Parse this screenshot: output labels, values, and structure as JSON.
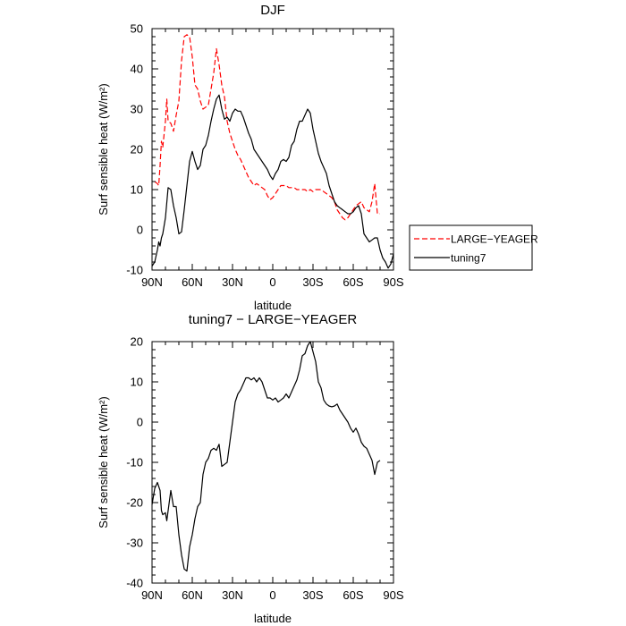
{
  "chart_data": [
    {
      "type": "line",
      "title": "DJF",
      "xlabel": "latitude",
      "ylabel": "Surf sensible heat (W/m²)",
      "xlim": [
        90,
        -90
      ],
      "ylim": [
        -10,
        50
      ],
      "xticks": [
        90,
        60,
        30,
        0,
        -30,
        -60,
        -90
      ],
      "xtick_labels": [
        "90N",
        "60N",
        "30N",
        "0",
        "30S",
        "60S",
        "90S"
      ],
      "yticks": [
        -10,
        0,
        10,
        20,
        30,
        40,
        50
      ],
      "ytick_labels": [
        "-10",
        "0",
        "10",
        "20",
        "30",
        "40",
        "50"
      ],
      "legend_placement": "right",
      "series": [
        {
          "name": "LARGE−YEAGER",
          "color": "#ff0000",
          "dash": "dashed",
          "x": [
            88,
            86,
            85,
            84,
            83,
            82,
            80,
            79,
            78,
            76,
            74,
            72,
            70,
            68,
            66,
            64,
            62,
            60,
            58,
            56,
            54,
            52,
            50,
            48,
            46,
            44,
            42,
            40,
            38,
            36,
            34,
            32,
            30,
            28,
            26,
            24,
            22,
            20,
            18,
            16,
            14,
            12,
            10,
            8,
            6,
            4,
            2,
            0,
            -2,
            -4,
            -6,
            -8,
            -10,
            -12,
            -14,
            -16,
            -18,
            -20,
            -22,
            -24,
            -26,
            -28,
            -30,
            -32,
            -34,
            -36,
            -38,
            -40,
            -42,
            -44,
            -46,
            -48,
            -50,
            -52,
            -54,
            -56,
            -58,
            -60,
            -62,
            -64,
            -66,
            -68,
            -70,
            -72,
            -74,
            -76,
            -78,
            -80
          ],
          "y": [
            12,
            11.5,
            11,
            16,
            22,
            20.5,
            27,
            32.5,
            27,
            26.5,
            24.5,
            28.5,
            32,
            42,
            48,
            48.5,
            48,
            43,
            36,
            35,
            32,
            30,
            30.5,
            31,
            35,
            39,
            45,
            41,
            36,
            33,
            27,
            24,
            22,
            20,
            18.5,
            17.5,
            16,
            14.5,
            13,
            12,
            11,
            11.5,
            11,
            10.5,
            10,
            8.5,
            7.5,
            8,
            9,
            10,
            11,
            11,
            11,
            10.5,
            10.5,
            10.5,
            10,
            10,
            10,
            10,
            9.5,
            10,
            9.5,
            10,
            10,
            10,
            9.5,
            9,
            8.5,
            8,
            7,
            5,
            4,
            3,
            2.5,
            3,
            4,
            5,
            6,
            6.5,
            7,
            5.5,
            5,
            4.5,
            7,
            11.5,
            4,
            4
          ]
        },
        {
          "name": "tuning7",
          "color": "#000000",
          "dash": "solid",
          "x": [
            90,
            88,
            86,
            85,
            84,
            83,
            82,
            80,
            78,
            76,
            74,
            72,
            70,
            68,
            66,
            64,
            62,
            60,
            58,
            56,
            54,
            52,
            50,
            48,
            46,
            44,
            42,
            40,
            38,
            36,
            34,
            32,
            30,
            28,
            26,
            24,
            22,
            20,
            18,
            16,
            14,
            12,
            10,
            8,
            6,
            4,
            2,
            0,
            -2,
            -4,
            -6,
            -8,
            -10,
            -12,
            -14,
            -16,
            -18,
            -20,
            -22,
            -24,
            -26,
            -28,
            -30,
            -32,
            -34,
            -36,
            -38,
            -40,
            -42,
            -44,
            -46,
            -48,
            -50,
            -52,
            -54,
            -56,
            -58,
            -60,
            -62,
            -64,
            -66,
            -68,
            -70,
            -72,
            -74,
            -76,
            -78,
            -80,
            -82,
            -84,
            -86,
            -88,
            -90
          ],
          "y": [
            -9,
            -8,
            -5,
            -3,
            -4,
            -2,
            -1,
            3,
            10.5,
            10,
            6,
            3,
            -1,
            -0.5,
            5,
            11,
            17,
            19.5,
            17,
            15,
            16,
            20,
            21,
            23.5,
            27,
            30,
            32.5,
            33.5,
            30,
            27.5,
            28,
            27,
            29,
            30,
            29.5,
            29.5,
            28,
            26,
            24,
            22.5,
            20,
            19,
            18,
            17,
            16,
            15,
            13.5,
            12.5,
            14,
            15,
            17,
            17.5,
            17,
            18,
            21,
            22,
            25,
            27,
            27,
            28.5,
            30,
            29,
            25,
            22,
            19,
            17,
            15.5,
            14,
            11,
            9,
            7,
            6,
            5.5,
            5,
            4.5,
            4,
            4,
            4.5,
            5.5,
            6,
            4,
            -1,
            -2,
            -3,
            -2.5,
            -2,
            -2,
            -5,
            -7,
            -8,
            -9.5,
            -8.5,
            -6
          ]
        }
      ]
    },
    {
      "type": "line",
      "title": "tuning7 − LARGE−YEAGER",
      "xlabel": "latitude",
      "ylabel": "Surf sensible heat (W/m²)",
      "xlim": [
        90,
        -90
      ],
      "ylim": [
        -40,
        20
      ],
      "xticks": [
        90,
        60,
        30,
        0,
        -30,
        -60,
        -90
      ],
      "xtick_labels": [
        "90N",
        "60N",
        "30N",
        "0",
        "30S",
        "60S",
        "90S"
      ],
      "yticks": [
        -40,
        -30,
        -20,
        -10,
        0,
        10,
        20
      ],
      "ytick_labels": [
        "-40",
        "-30",
        "-20",
        "-10",
        "0",
        "10",
        "20"
      ],
      "series": [
        {
          "color": "#000000",
          "dash": "solid",
          "x": [
            90,
            88,
            86,
            84,
            83,
            82,
            80,
            79,
            78,
            76,
            74,
            72,
            70,
            68,
            66,
            64,
            62,
            60,
            58,
            56,
            54,
            52,
            50,
            48,
            46,
            44,
            42,
            40,
            38,
            36,
            34,
            32,
            30,
            28,
            26,
            24,
            22,
            20,
            18,
            16,
            14,
            12,
            10,
            8,
            6,
            4,
            2,
            0,
            -2,
            -4,
            -6,
            -8,
            -10,
            -12,
            -14,
            -16,
            -18,
            -20,
            -22,
            -24,
            -26,
            -28,
            -30,
            -32,
            -34,
            -36,
            -38,
            -40,
            -42,
            -44,
            -46,
            -48,
            -50,
            -52,
            -54,
            -56,
            -58,
            -60,
            -62,
            -64,
            -66,
            -68,
            -70,
            -72,
            -74,
            -76,
            -78,
            -80
          ],
          "y": [
            -20.5,
            -16.5,
            -15,
            -17,
            -22,
            -23,
            -22.5,
            -24.5,
            -22,
            -17,
            -21,
            -21,
            -28,
            -33,
            -36.5,
            -37,
            -31,
            -28,
            -24,
            -21,
            -20,
            -13,
            -10,
            -9,
            -7,
            -6.5,
            -7,
            -5.5,
            -11,
            -10.5,
            -10,
            -5,
            0,
            5,
            7,
            8,
            9.5,
            11,
            11,
            10.5,
            11,
            10,
            11,
            10,
            8,
            6,
            6,
            5.5,
            6,
            5,
            5.5,
            6,
            7,
            6,
            7.5,
            9,
            10.5,
            13,
            16.5,
            17,
            19,
            20,
            17.5,
            15,
            10,
            8.5,
            5.5,
            4.5,
            4,
            3.8,
            4,
            4.5,
            3,
            2,
            1,
            0,
            -1.5,
            -2.5,
            -1.5,
            -3,
            -5,
            -6,
            -6.5,
            -8,
            -9.5,
            -13,
            -10,
            -9.5
          ]
        }
      ]
    }
  ]
}
